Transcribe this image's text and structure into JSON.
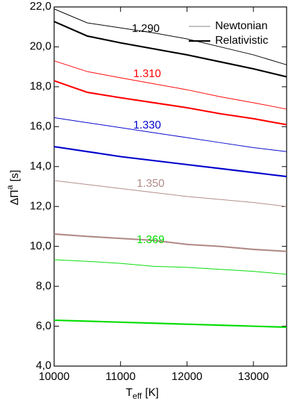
{
  "chart_data": {
    "type": "line",
    "xlabel": {
      "main": "T",
      "sub": "eff",
      "unit": "[K]"
    },
    "ylabel": {
      "main": "ΔΠ",
      "sup": "a",
      "unit": "[s]"
    },
    "xlim": [
      10000,
      13500
    ],
    "xticks": [
      10000,
      11000,
      12000,
      13000
    ],
    "ylim": [
      4.0,
      22.0
    ],
    "yticks": [
      {
        "value": 4.0,
        "label": "4,0"
      },
      {
        "value": 6.0,
        "label": "6,0"
      },
      {
        "value": 8.0,
        "label": "8,0"
      },
      {
        "value": 10.0,
        "label": "10,0"
      },
      {
        "value": 12.0,
        "label": "12,0"
      },
      {
        "value": 14.0,
        "label": "14,0"
      },
      {
        "value": 16.0,
        "label": "16,0"
      },
      {
        "value": 18.0,
        "label": "18,0"
      },
      {
        "value": 20.0,
        "label": "20,0"
      },
      {
        "value": 22.0,
        "label": "22,0"
      }
    ],
    "legend": [
      {
        "name": "Newtonian",
        "color": "#808080",
        "width": 1
      },
      {
        "name": "Relativistic",
        "color": "#000000",
        "width": 2.2
      }
    ],
    "x": [
      10000,
      10500,
      11000,
      11500,
      12000,
      12500,
      13000,
      13500
    ],
    "groups": [
      {
        "label": "1.290",
        "color": "#000000",
        "newtonian": [
          21.9,
          21.2,
          20.95,
          20.7,
          20.4,
          20.0,
          19.6,
          19.1
        ],
        "relativistic": [
          21.27,
          20.54,
          20.2,
          19.9,
          19.6,
          19.25,
          18.9,
          18.5
        ]
      },
      {
        "label": "1.310",
        "color": "#ff0000",
        "newtonian": [
          19.3,
          18.76,
          18.45,
          18.15,
          17.85,
          17.5,
          17.2,
          16.88
        ],
        "relativistic": [
          18.3,
          17.72,
          17.45,
          17.2,
          16.95,
          16.65,
          16.4,
          16.1
        ]
      },
      {
        "label": "1.330",
        "color": "#0000cc",
        "newtonian": [
          16.45,
          16.2,
          15.95,
          15.7,
          15.45,
          15.2,
          14.95,
          14.75
        ],
        "relativistic": [
          15.0,
          14.75,
          14.5,
          14.3,
          14.1,
          13.9,
          13.7,
          13.5
        ]
      },
      {
        "label": "1.350",
        "color": "#b08a87",
        "newtonian": [
          13.3,
          13.1,
          12.9,
          12.7,
          12.5,
          12.35,
          12.2,
          12.0
        ],
        "relativistic": [
          10.62,
          10.5,
          10.4,
          10.3,
          10.1,
          10.0,
          9.85,
          9.75
        ]
      },
      {
        "label": "1.369",
        "color": "#00dd00",
        "newtonian": [
          9.33,
          9.25,
          9.15,
          9.0,
          8.95,
          8.85,
          8.75,
          8.6
        ],
        "relativistic": [
          6.3,
          6.25,
          6.2,
          6.15,
          6.1,
          6.05,
          6.0,
          5.95
        ]
      }
    ]
  }
}
